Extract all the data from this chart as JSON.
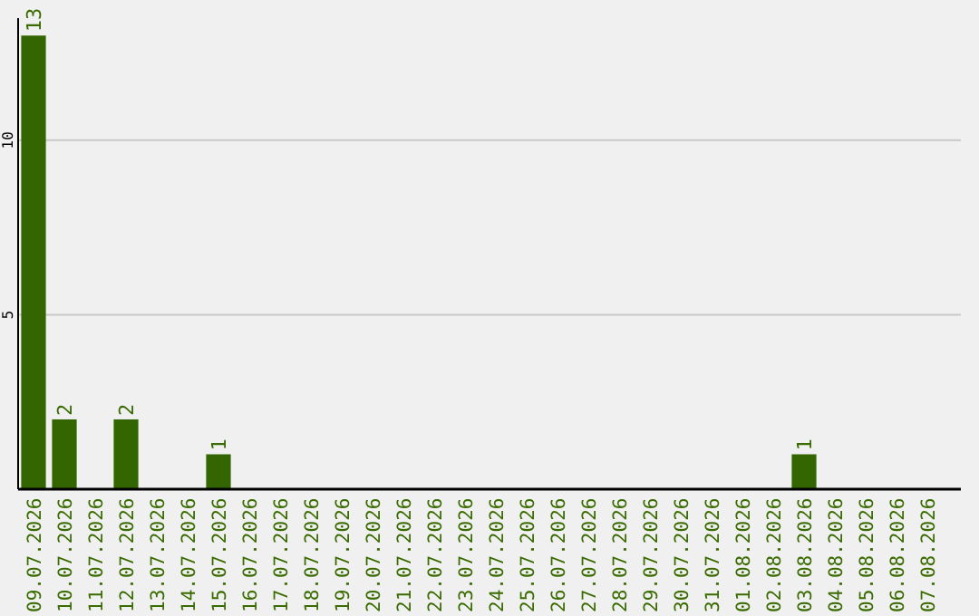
{
  "chart_data": {
    "type": "bar",
    "categories": [
      "09.07.2026",
      "10.07.2026",
      "11.07.2026",
      "12.07.2026",
      "13.07.2026",
      "14.07.2026",
      "15.07.2026",
      "16.07.2026",
      "17.07.2026",
      "18.07.2026",
      "19.07.2026",
      "20.07.2026",
      "21.07.2026",
      "22.07.2026",
      "23.07.2026",
      "24.07.2026",
      "25.07.2026",
      "26.07.2026",
      "27.07.2026",
      "28.07.2026",
      "29.07.2026",
      "30.07.2026",
      "31.07.2026",
      "01.08.2026",
      "02.08.2026",
      "03.08.2026",
      "04.08.2026",
      "05.08.2026",
      "06.08.2026",
      "07.08.2026"
    ],
    "values": [
      13,
      2,
      0,
      2,
      0,
      0,
      1,
      0,
      0,
      0,
      0,
      0,
      0,
      0,
      0,
      0,
      0,
      0,
      0,
      0,
      0,
      0,
      0,
      0,
      0,
      1,
      0,
      0,
      0,
      0
    ],
    "value_labels": [
      "13",
      "2",
      null,
      "2",
      null,
      null,
      "1",
      null,
      null,
      null,
      null,
      null,
      null,
      null,
      null,
      null,
      null,
      null,
      null,
      null,
      null,
      null,
      null,
      null,
      null,
      "1",
      null,
      null,
      null,
      null
    ],
    "color": "#336600",
    "ylim": [
      0,
      13.5
    ],
    "yticks": [
      5,
      10
    ],
    "grid": "y"
  }
}
